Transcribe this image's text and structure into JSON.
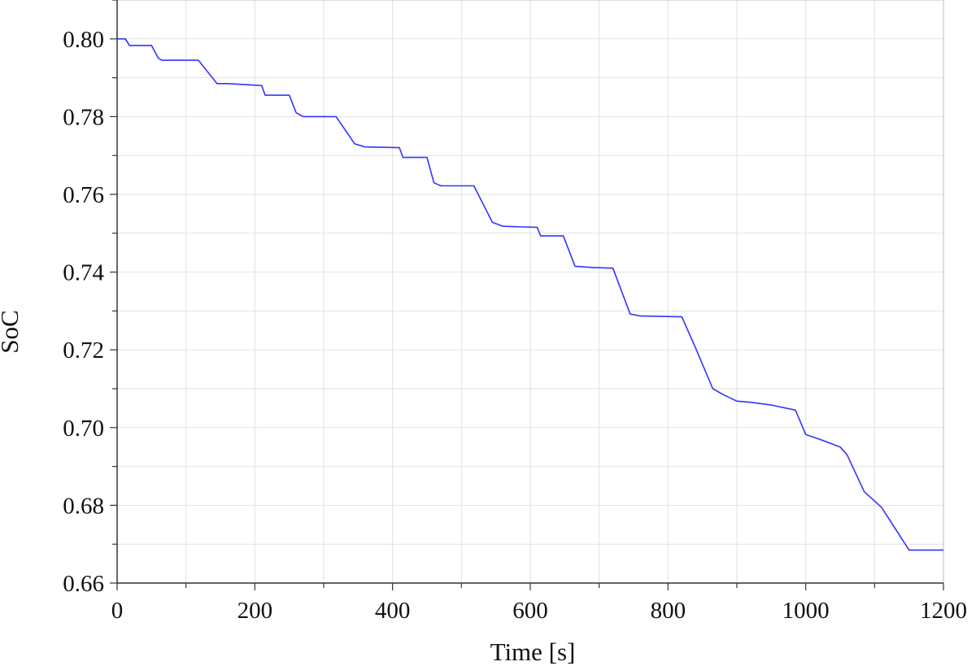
{
  "chart_data": {
    "type": "line",
    "title": "",
    "xlabel": "Time [s]",
    "ylabel": "SoC",
    "xlim": [
      0,
      1200
    ],
    "ylim": [
      0.66,
      0.81
    ],
    "xticks": [
      0,
      200,
      400,
      600,
      800,
      1000,
      1200
    ],
    "xtick_labels": [
      "0",
      "200",
      "400",
      "600",
      "800",
      "1000",
      "1200"
    ],
    "yticks": [
      0.66,
      0.68,
      0.7,
      0.72,
      0.74,
      0.76,
      0.78,
      0.8
    ],
    "ytick_labels": [
      "0.66",
      "0.68",
      "0.70",
      "0.72",
      "0.74",
      "0.76",
      "0.78",
      "0.80"
    ],
    "grid": true,
    "line_color": "#3333ff",
    "grid_color": "#e2e2e2",
    "series": [
      {
        "x": [
          0,
          12,
          18,
          50,
          60,
          65,
          118,
          145,
          160,
          210,
          215,
          250,
          260,
          270,
          318,
          345,
          360,
          410,
          415,
          450,
          460,
          470,
          518,
          545,
          560,
          610,
          615,
          648,
          665,
          690,
          720,
          745,
          760,
          820,
          840,
          865,
          880,
          900,
          920,
          950,
          985,
          1000,
          1020,
          1050,
          1060,
          1085,
          1110,
          1130,
          1150,
          1200
        ],
        "y": [
          0.8,
          0.8,
          0.7983,
          0.7983,
          0.795,
          0.7945,
          0.7945,
          0.7885,
          0.7885,
          0.788,
          0.7855,
          0.7855,
          0.781,
          0.78,
          0.78,
          0.773,
          0.7722,
          0.772,
          0.7695,
          0.7695,
          0.763,
          0.7622,
          0.7622,
          0.7528,
          0.7518,
          0.7515,
          0.7493,
          0.7493,
          0.7415,
          0.7412,
          0.741,
          0.7292,
          0.7287,
          0.7285,
          0.7205,
          0.71,
          0.7085,
          0.7068,
          0.7065,
          0.7058,
          0.7045,
          0.6982,
          0.697,
          0.695,
          0.693,
          0.6835,
          0.6795,
          0.674,
          0.6685,
          0.6685
        ]
      }
    ]
  }
}
